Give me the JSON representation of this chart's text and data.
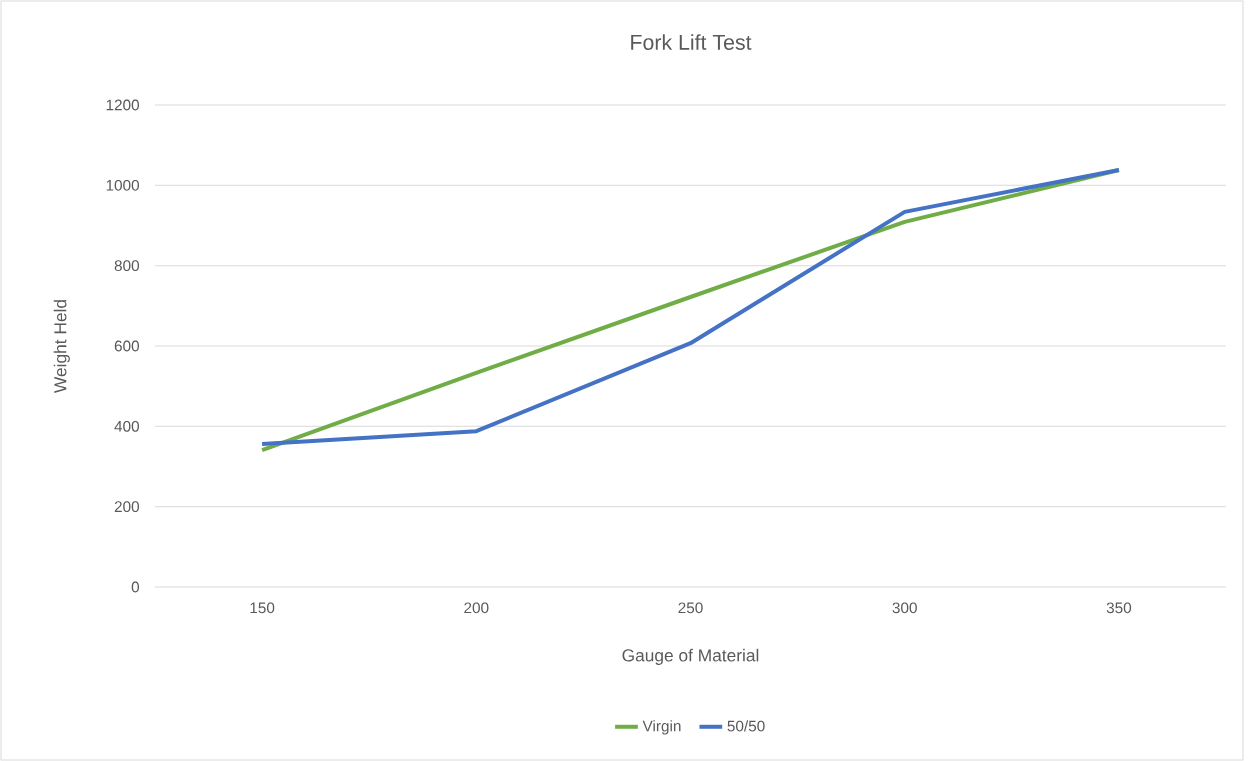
{
  "chart_data": {
    "type": "line",
    "title": "Fork Lift Test",
    "xlabel": "Gauge of Material",
    "ylabel": "Weight Held",
    "categories": [
      "150",
      "200",
      "250",
      "300",
      "350"
    ],
    "series": [
      {
        "name": "Virgin",
        "color": "#70ad47",
        "values": [
          341,
          533,
          722,
          909,
          1038
        ]
      },
      {
        "name": "50/50",
        "color": "#4472c4",
        "values": [
          356,
          388,
          607,
          934,
          1038
        ]
      }
    ],
    "ylim": [
      0,
      1200
    ],
    "yticks": [
      0,
      200,
      400,
      600,
      800,
      1000,
      1200
    ],
    "grid": "y",
    "legend": "bottom",
    "marker": "none",
    "line_style": "solid"
  }
}
